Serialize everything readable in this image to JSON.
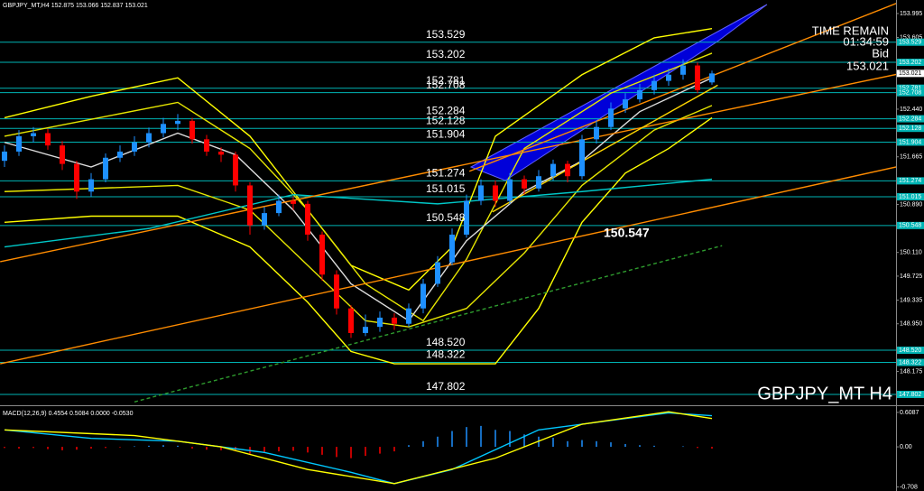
{
  "chart_data": {
    "type": "candlestick",
    "symbol_header": "GBPJPY_MT,H4",
    "watermark": "GBPJPY_MT H4",
    "info": {
      "time_label": "TIME REMAIN",
      "time": "01:34:59",
      "bid_label": "Bid"
    },
    "up_color": "#1e90ff",
    "down_color": "#ff0000",
    "ylim": [
      147.64,
      154.215
    ],
    "yticks": [
      153.995,
      153.605,
      {
        "value": 152.44,
        "label": "152.440"
      },
      151.665,
      {
        "value": 150.89,
        "label": "150.890"
      },
      {
        "value": 150.11,
        "label": "150.110"
      },
      149.725,
      149.335,
      {
        "value": 148.95,
        "label": "148.950"
      },
      148.175
    ],
    "levels": [
      153.529,
      153.202,
      152.781,
      152.708,
      152.284,
      152.128,
      151.904,
      151.274,
      151.015,
      150.548,
      {
        "value": 148.52,
        "label": "148.520"
      },
      148.322,
      147.802
    ],
    "level_color": "#00b4b4",
    "annotation": {
      "value": 150.547,
      "x": 41.5
    },
    "open": [
      151.6,
      151.75,
      152,
      152.05,
      151.85,
      151.55,
      151.1,
      151.3,
      151.65,
      151.75,
      151.9,
      152.05,
      152.2,
      152.25,
      151.95,
      151.75,
      151.7,
      151.2,
      150.55,
      150.75,
      150.95,
      150.9,
      150.4,
      149.75,
      149.2,
      148.8,
      148.9,
      149.05,
      148.95,
      149.2,
      149.6,
      149.95,
      150.4,
      150.95,
      151.2,
      150.95,
      151.3,
      151.15,
      151.35,
      151.55,
      151.35,
      151.95,
      152.15,
      152.45,
      152.6,
      152.75,
      152.9,
      153,
      153.15,
      152.875
    ],
    "high": [
      151.85,
      152.1,
      152.15,
      152.12,
      151.92,
      151.6,
      151.4,
      151.72,
      151.85,
      152,
      152.14,
      152.3,
      152.36,
      152.3,
      152.02,
      151.82,
      151.75,
      151.25,
      150.85,
      151.05,
      151.02,
      150.95,
      150.45,
      149.82,
      149.25,
      149.1,
      149.15,
      149.12,
      149.28,
      149.68,
      150.05,
      150.5,
      151.05,
      151.3,
      151.28,
      151.4,
      151.36,
      151.45,
      151.62,
      151.6,
      152.02,
      152.25,
      152.55,
      152.7,
      152.85,
      153,
      153.1,
      153.25,
      153.2,
      153.066
    ],
    "low": [
      151.5,
      151.68,
      151.9,
      151.78,
      151.45,
      150.98,
      151.02,
      151.25,
      151.58,
      151.68,
      151.82,
      151.98,
      152.1,
      151.88,
      151.68,
      151.58,
      151.1,
      150.4,
      150.48,
      150.7,
      150.8,
      150.3,
      149.65,
      149.1,
      148.72,
      148.75,
      148.82,
      148.85,
      148.9,
      149.12,
      149.55,
      149.9,
      150.35,
      150.88,
      150.85,
      150.9,
      151.05,
      151.1,
      151.28,
      151.25,
      151.3,
      151.88,
      152.1,
      152.38,
      152.55,
      152.68,
      152.82,
      152.92,
      152.7,
      152.837
    ],
    "close": [
      151.75,
      152,
      152.05,
      151.85,
      151.55,
      151.1,
      151.3,
      151.65,
      151.75,
      151.9,
      152.05,
      152.2,
      152.25,
      151.95,
      151.75,
      151.7,
      151.2,
      150.55,
      150.75,
      150.95,
      150.9,
      150.4,
      149.75,
      149.2,
      148.8,
      148.9,
      149.05,
      148.95,
      149.2,
      149.6,
      149.95,
      150.4,
      150.95,
      151.2,
      150.95,
      151.3,
      151.15,
      151.35,
      151.55,
      151.35,
      151.95,
      152.15,
      152.45,
      152.6,
      152.75,
      152.9,
      153,
      153.15,
      152.75,
      153.021
    ],
    "overlays": [
      {
        "color": "#ffff00",
        "x": [
          0,
          6,
          12,
          17,
          20,
          24,
          28,
          31,
          34,
          40,
          45,
          49
        ],
        "values": [
          152.3,
          152.65,
          152.95,
          152,
          151.1,
          149.9,
          149.5,
          150.2,
          152,
          153,
          153.6,
          153.75
        ]
      },
      {
        "color": "#ffff00",
        "x": [
          0,
          6,
          12,
          17,
          21,
          24,
          27,
          31,
          34,
          37,
          40,
          43,
          46,
          49
        ],
        "values": [
          150.6,
          150.7,
          150.7,
          150.2,
          149.3,
          148.5,
          148.3,
          148.3,
          148.3,
          149.2,
          150.6,
          151.4,
          151.8,
          152.3
        ]
      },
      {
        "color": "#e6e600",
        "x": [
          0,
          12,
          17,
          21,
          25,
          29,
          32,
          36,
          42,
          49
        ],
        "values": [
          152,
          152.55,
          151.8,
          150.8,
          149.6,
          149,
          150,
          151.8,
          152.7,
          153.35
        ]
      },
      {
        "color": "#e6e600",
        "x": [
          0,
          12,
          17,
          21,
          25,
          28,
          32,
          36,
          40,
          45,
          49
        ],
        "values": [
          151.1,
          151.2,
          150.8,
          149.9,
          149,
          148.9,
          149.2,
          150.1,
          151.2,
          152.1,
          152.5
        ]
      },
      {
        "color": "#00c8c8",
        "x": [
          0,
          10,
          20,
          30,
          40,
          49
        ],
        "values": [
          150.2,
          150.5,
          151.05,
          150.9,
          151.1,
          151.3
        ]
      },
      {
        "color": "#dddddd",
        "x": [
          0,
          6,
          12,
          16,
          20,
          24,
          28,
          32,
          36,
          40,
          44,
          49
        ],
        "values": [
          151.9,
          151.5,
          152.05,
          151.7,
          150.8,
          149.6,
          149,
          150.3,
          151.1,
          151.6,
          152.4,
          152.95
        ]
      }
    ],
    "trendlines": [
      {
        "color": "#ff8c00",
        "x": [
          -0.3,
          63.7
        ],
        "values": [
          148.3,
          151.6
        ]
      },
      {
        "color": "#ff8c00",
        "x": [
          -0.3,
          63.7
        ],
        "values": [
          149.96,
          153.1
        ]
      },
      {
        "color": "#ff8c00",
        "x": [
          32.2,
          62.2
        ],
        "values": [
          151.43,
          154.2
        ]
      },
      {
        "color": "#ffd700",
        "x": [
          33.8,
          49.4
        ],
        "values": [
          150.77,
          152.83
        ]
      },
      {
        "color": "#2e9b2e",
        "dash": true,
        "x": [
          9,
          49.7
        ],
        "values": [
          147.68,
          150.22
        ]
      }
    ],
    "macd": {
      "name": "MACD(12,26,9)",
      "header_values": [
        0.4554,
        0.5084,
        {
          "value": 0,
          "label": "0.0000"
        },
        {
          "value": -0.053,
          "label": "-0.0530"
        }
      ],
      "ylim": [
        -0.78,
        0.687
      ],
      "yticks": [
        0.6087,
        {
          "value": 0,
          "label": "0.00"
        },
        -0.708
      ],
      "histogram": [
        -0.02,
        -0.03,
        -0.02,
        -0.04,
        -0.06,
        -0.05,
        -0.03,
        -0.02,
        -0.01,
        0.01,
        0.02,
        0.03,
        0.02,
        -0.03,
        -0.05,
        -0.06,
        -0.08,
        -0.12,
        -0.1,
        -0.08,
        -0.07,
        -0.1,
        -0.14,
        -0.18,
        -0.2,
        -0.16,
        -0.12,
        -0.08,
        0.03,
        0.1,
        0.18,
        0.28,
        0.35,
        0.37,
        0.3,
        0.28,
        0.22,
        0.18,
        0.16,
        0.1,
        0.12,
        0.1,
        0.08,
        0.05,
        0.03,
        0.02,
        0,
        0.01,
        -0.02,
        -0.03
      ],
      "lines": [
        {
          "color": "#00c8ff",
          "x": [
            0,
            6,
            12,
            18,
            24,
            27,
            31,
            37,
            43,
            46,
            49
          ],
          "values": [
            0.3,
            0.15,
            0.1,
            -0.1,
            -0.45,
            -0.65,
            -0.4,
            0.3,
            0.5,
            0.6,
            0.55
          ]
        },
        {
          "color": "#ffff00",
          "x": [
            0,
            9,
            15,
            21,
            27,
            34,
            40,
            46,
            49
          ],
          "values": [
            0.3,
            0.2,
            0,
            -0.4,
            -0.65,
            -0.2,
            0.4,
            0.62,
            0.5
          ]
        }
      ]
    }
  }
}
